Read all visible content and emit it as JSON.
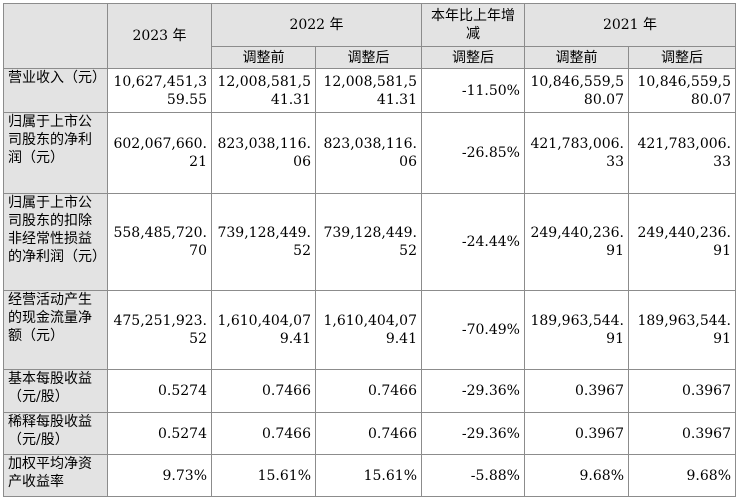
{
  "header": {
    "year_2023": "2023 年",
    "year_2022": "2022 年",
    "yoy_change": "本年比上年增减",
    "year_2021": "2021 年",
    "before_adjust": "调整前",
    "after_adjust": "调整后"
  },
  "rows": [
    {
      "label": "营业收入（元）",
      "v2023": "10,627,451,359.55",
      "v2022_before": "12,008,581,541.31",
      "v2022_after": "12,008,581,541.31",
      "change": "-11.50%",
      "v2021_before": "10,846,559,580.07",
      "v2021_after": "10,846,559,580.07"
    },
    {
      "label": "归属于上市公司股东的净利润（元）",
      "v2023": "602,067,660.21",
      "v2022_before": "823,038,116.06",
      "v2022_after": "823,038,116.06",
      "change": "-26.85%",
      "v2021_before": "421,783,006.33",
      "v2021_after": "421,783,006.33"
    },
    {
      "label": "归属于上市公司股东的扣除非经常性损益的净利润（元）",
      "v2023": "558,485,720.70",
      "v2022_before": "739,128,449.52",
      "v2022_after": "739,128,449.52",
      "change": "-24.44%",
      "v2021_before": "249,440,236.91",
      "v2021_after": "249,440,236.91"
    },
    {
      "label": "经营活动产生的现金流量净额（元）",
      "v2023": "475,251,923.52",
      "v2022_before": "1,610,404,079.41",
      "v2022_after": "1,610,404,079.41",
      "change": "-70.49%",
      "v2021_before": "189,963,544.91",
      "v2021_after": "189,963,544.91"
    },
    {
      "label": "基本每股收益（元/股）",
      "v2023": "0.5274",
      "v2022_before": "0.7466",
      "v2022_after": "0.7466",
      "change": "-29.36%",
      "v2021_before": "0.3967",
      "v2021_after": "0.3967"
    },
    {
      "label": "稀释每股收益（元/股）",
      "v2023": "0.5274",
      "v2022_before": "0.7466",
      "v2022_after": "0.7466",
      "change": "-29.36%",
      "v2021_before": "0.3967",
      "v2021_after": "0.3967"
    },
    {
      "label": "加权平均净资产收益率",
      "v2023": "9.73%",
      "v2022_before": "15.61%",
      "v2022_after": "15.61%",
      "change": "-5.88%",
      "v2021_before": "9.68%",
      "v2021_after": "9.68%"
    }
  ]
}
